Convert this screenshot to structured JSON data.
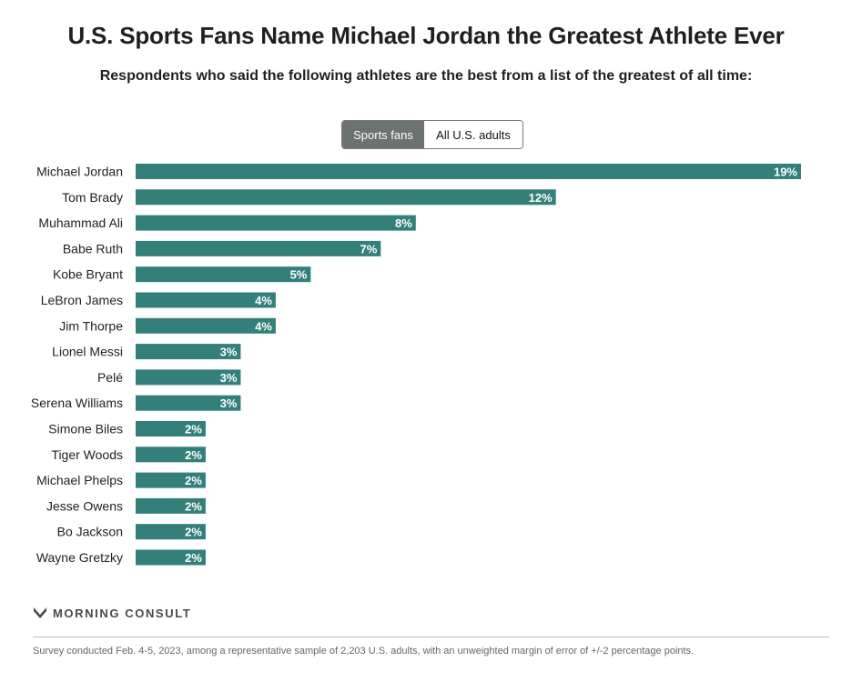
{
  "header": {
    "title": "U.S. Sports Fans Name Michael Jordan the Greatest Athlete Ever",
    "subtitle": "Respondents who said the following athletes are the best from a list of the greatest of all time:"
  },
  "toggle": {
    "options": [
      "Sports fans",
      "All U.S. adults"
    ],
    "selected": "Sports fans"
  },
  "colors": {
    "bar": "#33807b",
    "toggle_active": "#6b7271"
  },
  "chart_data": {
    "type": "bar",
    "orientation": "horizontal",
    "categories": [
      "Michael Jordan",
      "Tom Brady",
      "Muhammad Ali",
      "Babe Ruth",
      "Kobe Bryant",
      "LeBron James",
      "Jim Thorpe",
      "Lionel Messi",
      "Pelé",
      "Serena Williams",
      "Simone Biles",
      "Tiger Woods",
      "Michael Phelps",
      "Jesse Owens",
      "Bo Jackson",
      "Wayne Gretzky"
    ],
    "values": [
      19,
      12,
      8,
      7,
      5,
      4,
      4,
      3,
      3,
      3,
      2,
      2,
      2,
      2,
      2,
      2
    ],
    "value_labels": [
      "19%",
      "12%",
      "8%",
      "7%",
      "5%",
      "4%",
      "4%",
      "3%",
      "3%",
      "3%",
      "2%",
      "2%",
      "2%",
      "2%",
      "2%",
      "2%"
    ],
    "unit": "%",
    "xlim": [
      0,
      19
    ],
    "grid": false,
    "legend": "none"
  },
  "footer": {
    "brand": "MORNING CONSULT",
    "brand_icon": "morning-consult-logo-icon",
    "note": "Survey conducted Feb. 4-5, 2023, among a representative sample of 2,203 U.S. adults, with an unweighted margin of error of +/-2 percentage points."
  }
}
